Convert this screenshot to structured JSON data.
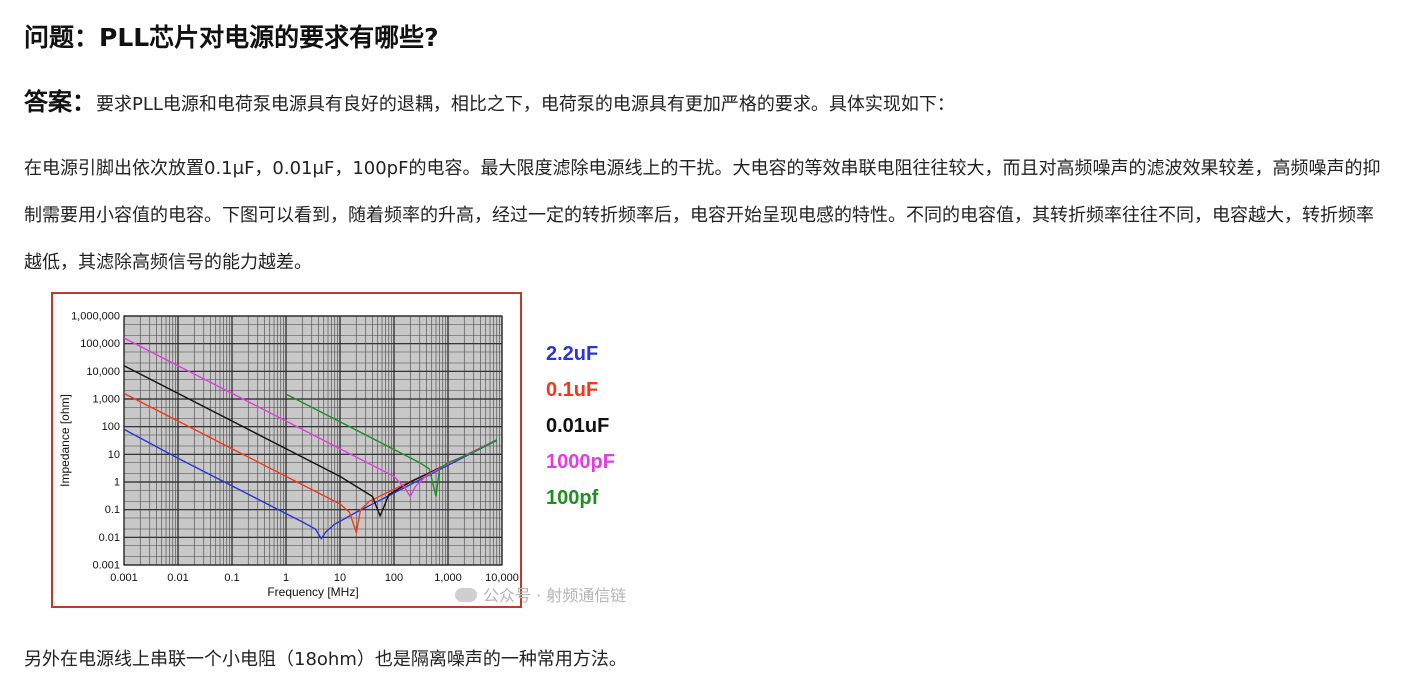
{
  "question": {
    "title": "问题：PLL芯片对电源的要求有哪些?"
  },
  "answer": {
    "label": "答案：",
    "text": "要求PLL电源和电荷泵电源具有良好的退耦，相比之下，电荷泵的电源具有更加严格的要求。具体实现如下："
  },
  "body": {
    "paragraph": "在电源引脚出依次放置0.1μF，0.01μF，100pF的电容。最大限度滤除电源线上的干扰。大电容的等效串联电阻往往较大，而且对高频噪声的滤波效果较差，高频噪声的抑制需要用小容值的电容。下图可以看到，随着频率的升高，经过一定的转折频率后，电容开始呈现电感的特性。不同的电容值，其转折频率往往不同，电容越大，转折频率越低，其滤除高频信号的能力越差。"
  },
  "figure": {
    "watermark": "公众号 · 射频通信链",
    "colors": {
      "frame": "#c0392b",
      "plot_bg": "#c8c8c8",
      "grid_major": "#222222",
      "grid_minor": "#444444"
    }
  },
  "chart_data": {
    "type": "line",
    "title": "",
    "xlabel": "Frequency [MHz]",
    "ylabel": "Impedance [ohm]",
    "x_scale": "log",
    "y_scale": "log",
    "xlim": [
      0.001,
      10000
    ],
    "ylim": [
      0.001,
      1000000
    ],
    "x_ticks": [
      0.001,
      0.01,
      0.1,
      1,
      10,
      100,
      1000,
      10000
    ],
    "x_tick_labels": [
      "0.001",
      "0.01",
      "0.1",
      "1",
      "10",
      "100",
      "1,000",
      "10,000"
    ],
    "y_ticks": [
      0.001,
      0.01,
      0.1,
      1,
      10,
      100,
      1000,
      10000,
      100000,
      1000000
    ],
    "y_tick_labels": [
      "0.001",
      "0.01",
      "0.1",
      "1",
      "10",
      "100",
      "1,000",
      "10,000",
      "100,000",
      "1,000,000"
    ],
    "grid": true,
    "legend_position": "right-outside",
    "series": [
      {
        "name": "2.2uF",
        "color": "#2a35d8",
        "x": [
          0.001,
          0.01,
          0.1,
          1,
          2,
          3.5,
          4.5,
          5.5,
          8,
          20,
          100,
          1000,
          8000
        ],
        "y": [
          80,
          7.2,
          0.72,
          0.072,
          0.036,
          0.02,
          0.009,
          0.016,
          0.03,
          0.08,
          0.4,
          4,
          32
        ]
      },
      {
        "name": "0.1uF",
        "color": "#f23a1b",
        "x": [
          0.001,
          0.01,
          0.1,
          1,
          10,
          15,
          20,
          24,
          35,
          100,
          1000,
          8000
        ],
        "y": [
          1600,
          160,
          16,
          1.6,
          0.16,
          0.08,
          0.015,
          0.1,
          0.2,
          0.55,
          4.5,
          33
        ]
      },
      {
        "name": "0.01uF",
        "color": "#111111",
        "x": [
          0.001,
          0.01,
          0.1,
          1,
          10,
          40,
          55,
          62,
          80,
          200,
          1000,
          8000
        ],
        "y": [
          16000,
          1600,
          160,
          16,
          1.6,
          0.3,
          0.06,
          0.1,
          0.35,
          1,
          4.5,
          33
        ]
      },
      {
        "name": "1000pF",
        "color": "#e23ce6",
        "x": [
          0.001,
          0.01,
          0.1,
          1,
          10,
          100,
          160,
          200,
          250,
          400,
          1000,
          8000
        ],
        "y": [
          160000,
          16000,
          1600,
          160,
          16,
          1.6,
          0.6,
          0.3,
          0.7,
          1.7,
          4.5,
          33
        ]
      },
      {
        "name": "100pf",
        "color": "#1f8f1f",
        "x": [
          1,
          10,
          100,
          300,
          450,
          600,
          700,
          1000,
          3000,
          8000
        ],
        "y": [
          1500,
          150,
          15,
          5,
          3,
          0.3,
          3,
          5,
          12,
          33
        ]
      }
    ]
  },
  "footer": {
    "text": "另外在电源线上串联一个小电阻（18ohm）也是隔离噪声的一种常用方法。"
  }
}
